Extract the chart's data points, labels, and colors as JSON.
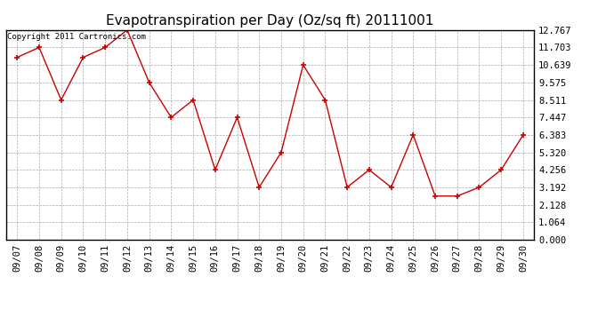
{
  "title": "Evapotranspiration per Day (Oz/sq ft) 20111001",
  "copyright": "Copyright 2011 Cartronics.com",
  "dates": [
    "09/07",
    "09/08",
    "09/09",
    "09/10",
    "09/11",
    "09/12",
    "09/13",
    "09/14",
    "09/15",
    "09/16",
    "09/17",
    "09/18",
    "09/19",
    "09/20",
    "09/21",
    "09/22",
    "09/23",
    "09/24",
    "09/25",
    "09/26",
    "09/27",
    "09/28",
    "09/29",
    "09/30"
  ],
  "values": [
    11.1,
    11.703,
    8.511,
    11.1,
    11.703,
    12.767,
    9.575,
    7.447,
    8.511,
    4.256,
    7.447,
    3.192,
    5.32,
    10.639,
    8.511,
    3.192,
    4.256,
    3.192,
    6.383,
    2.66,
    2.66,
    3.192,
    4.256,
    6.383
  ],
  "yticks": [
    0.0,
    1.064,
    2.128,
    3.192,
    4.256,
    5.32,
    6.383,
    7.447,
    8.511,
    9.575,
    10.639,
    11.703,
    12.767
  ],
  "ytick_labels": [
    "0.000",
    "1.064",
    "2.128",
    "3.192",
    "4.256",
    "5.320",
    "6.383",
    "7.447",
    "8.511",
    "9.575",
    "10.639",
    "11.703",
    "12.767"
  ],
  "ylim": [
    0.0,
    12.767
  ],
  "line_color": "#cc0000",
  "marker": "+",
  "marker_color": "#cc0000",
  "bg_color": "#ffffff",
  "grid_color": "#aaaaaa",
  "title_fontsize": 11,
  "tick_fontsize": 7.5,
  "copyright_fontsize": 6.5
}
